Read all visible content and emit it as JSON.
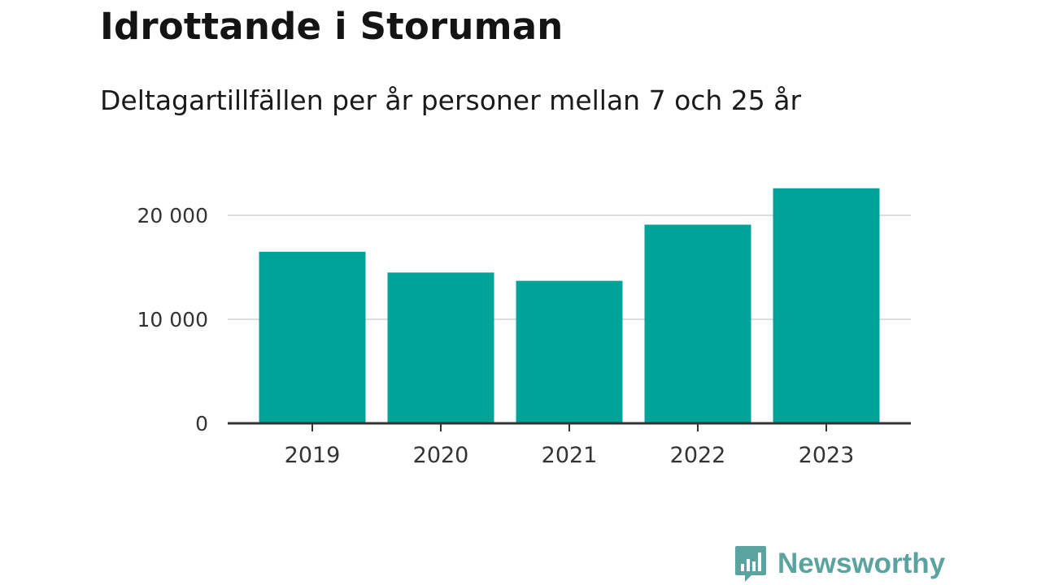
{
  "title": "Idrottande i Storuman",
  "subtitle": "Deltagartillfällen per år personer mellan 7 och 25 år",
  "brand": {
    "name": "Newsworthy",
    "icon": "bar-chart-speech-bubble-icon",
    "color": "#5aa39f"
  },
  "chart_data": {
    "type": "bar",
    "categories": [
      "2019",
      "2020",
      "2021",
      "2022",
      "2023"
    ],
    "values": [
      16500,
      14500,
      13700,
      19100,
      22600
    ],
    "yticks": [
      0,
      10000,
      20000
    ],
    "ytick_labels": [
      "0",
      "10 000",
      "20 000"
    ],
    "ylim": [
      0,
      23000
    ],
    "grid": true,
    "bar_color": "#00a39a",
    "xlabel": "",
    "ylabel": ""
  }
}
